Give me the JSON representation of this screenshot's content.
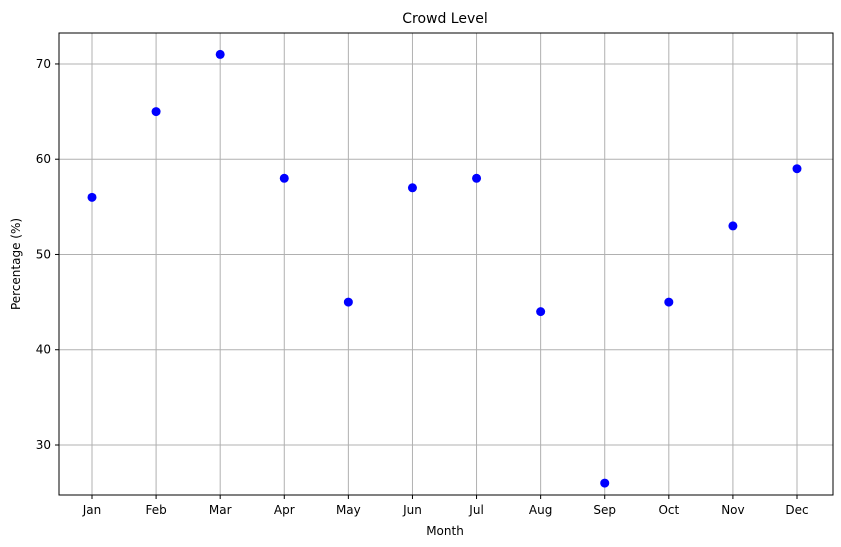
{
  "chart_data": {
    "type": "scatter",
    "title": "Crowd Level",
    "xlabel": "Month",
    "ylabel": "Percentage (%)",
    "categories": [
      "Jan",
      "Feb",
      "Mar",
      "Apr",
      "May",
      "Jun",
      "Jul",
      "Aug",
      "Sep",
      "Oct",
      "Nov",
      "Dec"
    ],
    "values": [
      56,
      65,
      71,
      58,
      45,
      57,
      58,
      44,
      26,
      45,
      53,
      59
    ],
    "yticks": [
      30,
      40,
      50,
      60,
      70
    ],
    "ylim": [
      24.75,
      73.25
    ],
    "grid": true,
    "marker_color": "#0000ff"
  }
}
